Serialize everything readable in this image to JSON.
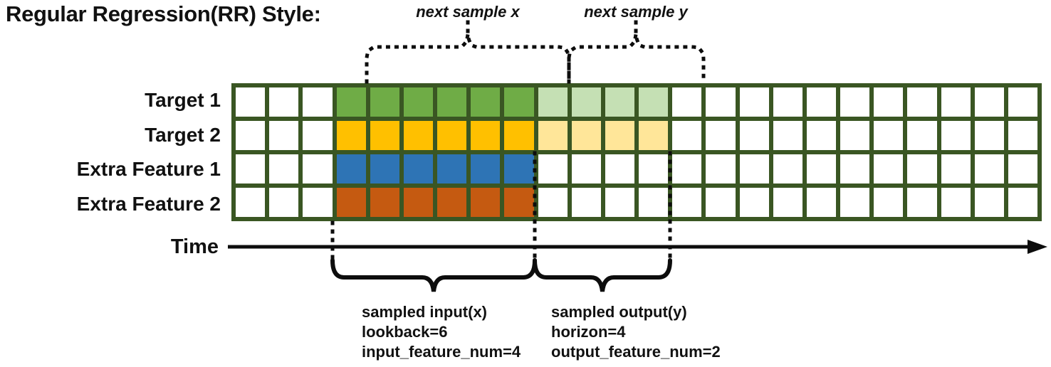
{
  "title": "Regular Regression(RR) Style:",
  "top_braces": {
    "x_label": "next sample x",
    "y_label": "next sample y"
  },
  "grid": {
    "columns": 24,
    "border_color": "#3A5623",
    "empty_color": "#FFFFFF",
    "rows": [
      {
        "label": "Target 1",
        "solid_color": "#6FAC46",
        "light_color": "#C5E0B4",
        "solid_start": 3,
        "solid_len": 6,
        "light_len": 4
      },
      {
        "label": "Target 2",
        "solid_color": "#FFC000",
        "light_color": "#FFE699",
        "solid_start": 3,
        "solid_len": 6,
        "light_len": 4
      },
      {
        "label": "Extra Feature 1",
        "solid_color": "#2E74B5",
        "light_color": null,
        "solid_start": 3,
        "solid_len": 6,
        "light_len": 0
      },
      {
        "label": "Extra Feature 2",
        "solid_color": "#C55A11",
        "light_color": null,
        "solid_start": 3,
        "solid_len": 6,
        "light_len": 0
      }
    ]
  },
  "time_axis": {
    "label": "Time"
  },
  "input_annotation": {
    "lines": [
      "sampled input(x)",
      "lookback=6",
      "input_feature_num=4"
    ]
  },
  "output_annotation": {
    "lines": [
      "sampled output(y)",
      "horizon=4",
      "output_feature_num=2"
    ]
  }
}
